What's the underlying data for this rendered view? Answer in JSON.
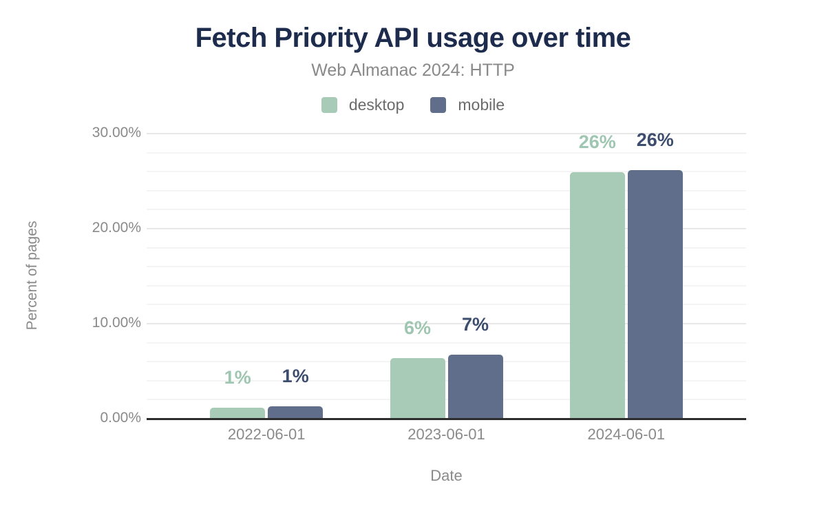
{
  "chart_data": {
    "type": "bar",
    "title": "Fetch Priority API usage over time",
    "subtitle": "Web Almanac 2024: HTTP",
    "xlabel": "Date",
    "ylabel": "Percent of pages",
    "categories": [
      "2022-06-01",
      "2023-06-01",
      "2024-06-01"
    ],
    "series": [
      {
        "name": "desktop",
        "color": "#a8cbb8",
        "label_color": "#9fc6b1",
        "values": [
          1.1,
          6.3,
          25.9
        ],
        "labels": [
          "1%",
          "6%",
          "26%"
        ]
      },
      {
        "name": "mobile",
        "color": "#606e8c",
        "label_color": "#3d4d6e",
        "values": [
          1.2,
          6.7,
          26.1
        ],
        "labels": [
          "1%",
          "7%",
          "26%"
        ]
      }
    ],
    "ylim": [
      0,
      30
    ],
    "grid_step": 2,
    "y_ticks": [
      {
        "value": 0,
        "label": "0.00%"
      },
      {
        "value": 10,
        "label": "10.00%"
      },
      {
        "value": 20,
        "label": "20.00%"
      },
      {
        "value": 30,
        "label": "30.00%"
      }
    ],
    "grid": true,
    "legend_position": "top",
    "colors": {
      "title": "#1d2b4c",
      "axis_line": "#2d2d2d",
      "tick_text": "#8a8a8a",
      "gridline_minor": "#f4f4f4",
      "gridline_major": "#e8e8e8"
    }
  }
}
